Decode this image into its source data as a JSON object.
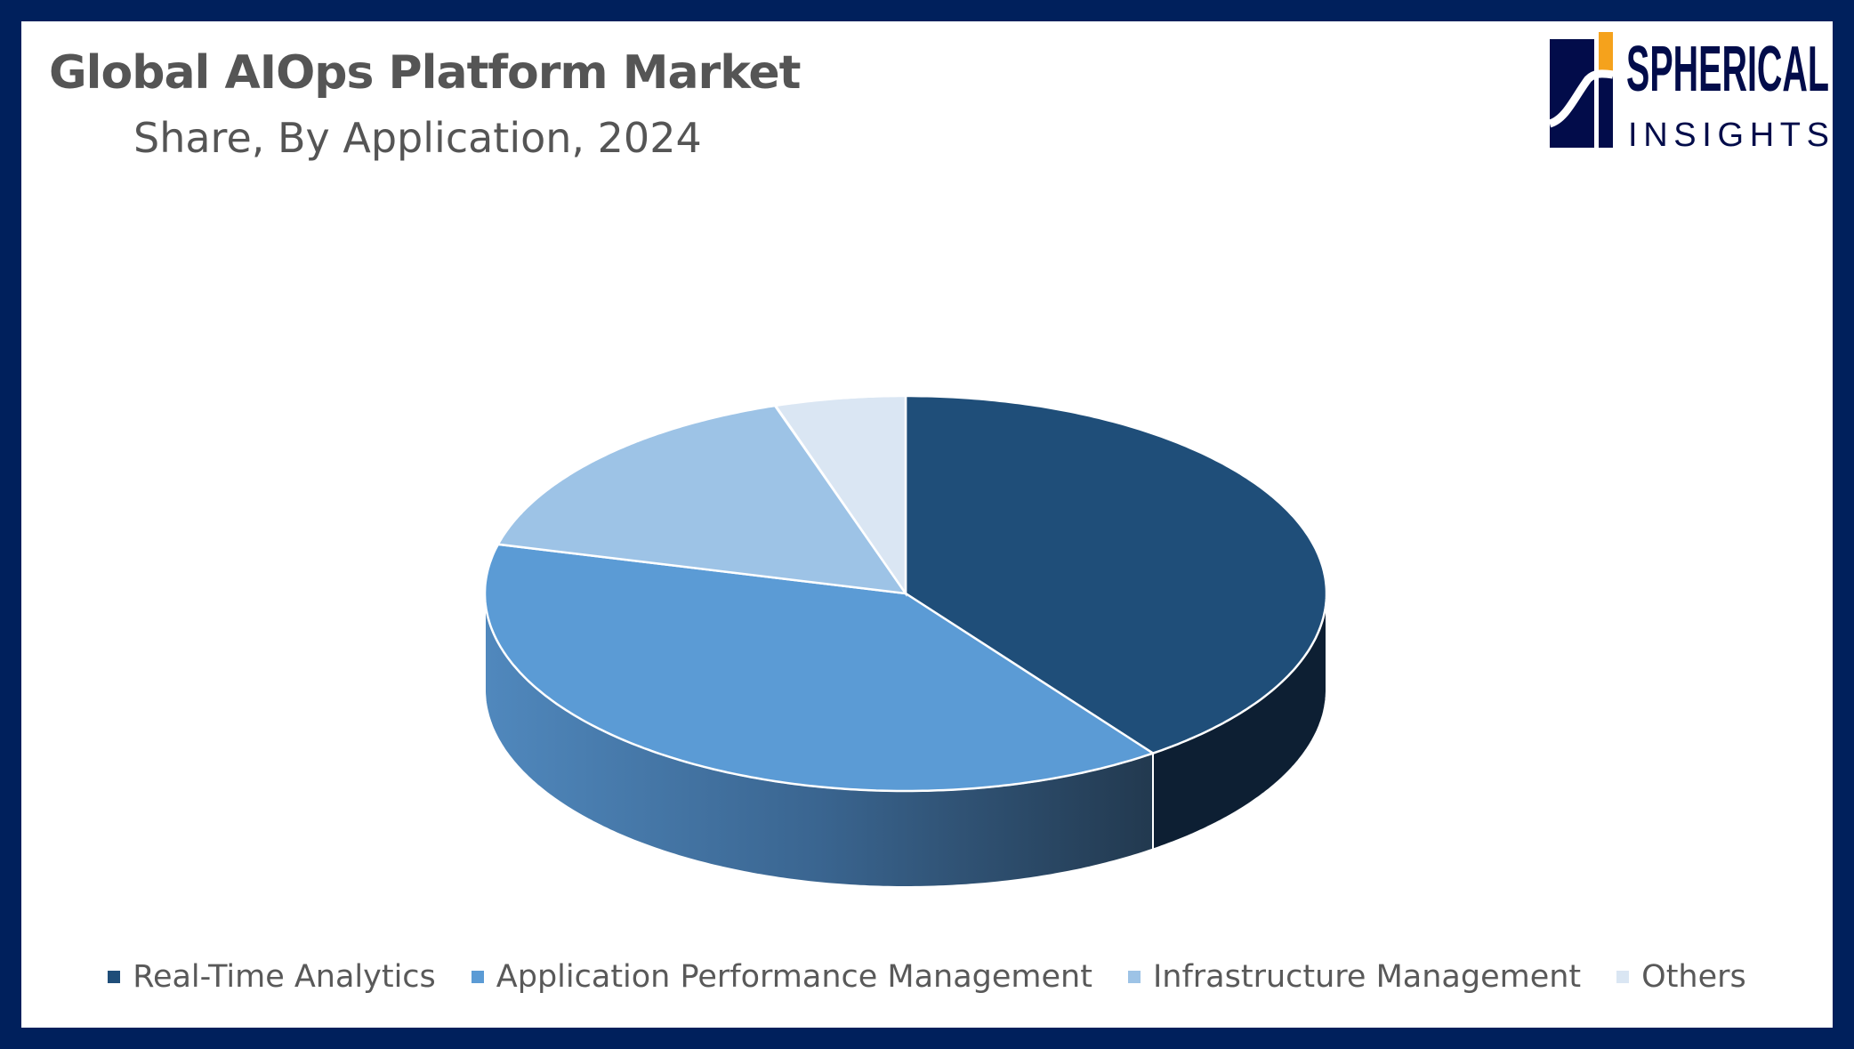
{
  "header": {
    "title": "Global AIOps Platform Market",
    "subtitle": "Share, By Application, 2024"
  },
  "logo": {
    "text_top": "SPHERICAL",
    "text_bottom": "INSIGHTS",
    "colors": {
      "navy": "#020c4a",
      "orange": "#f5a21c"
    }
  },
  "chart_data": {
    "type": "pie",
    "style": "3d",
    "title": "Global AIOps Platform Market",
    "subtitle": "Share, By Application, 2024",
    "legend_position": "bottom",
    "categories": [
      "Real-Time Analytics",
      "Application Performance Management",
      "Infrastructure Management",
      "Others"
    ],
    "values": [
      40,
      39,
      16,
      5
    ],
    "colors": [
      "#1f4e79",
      "#5b9bd5",
      "#9dc3e6",
      "#dae6f3"
    ]
  }
}
